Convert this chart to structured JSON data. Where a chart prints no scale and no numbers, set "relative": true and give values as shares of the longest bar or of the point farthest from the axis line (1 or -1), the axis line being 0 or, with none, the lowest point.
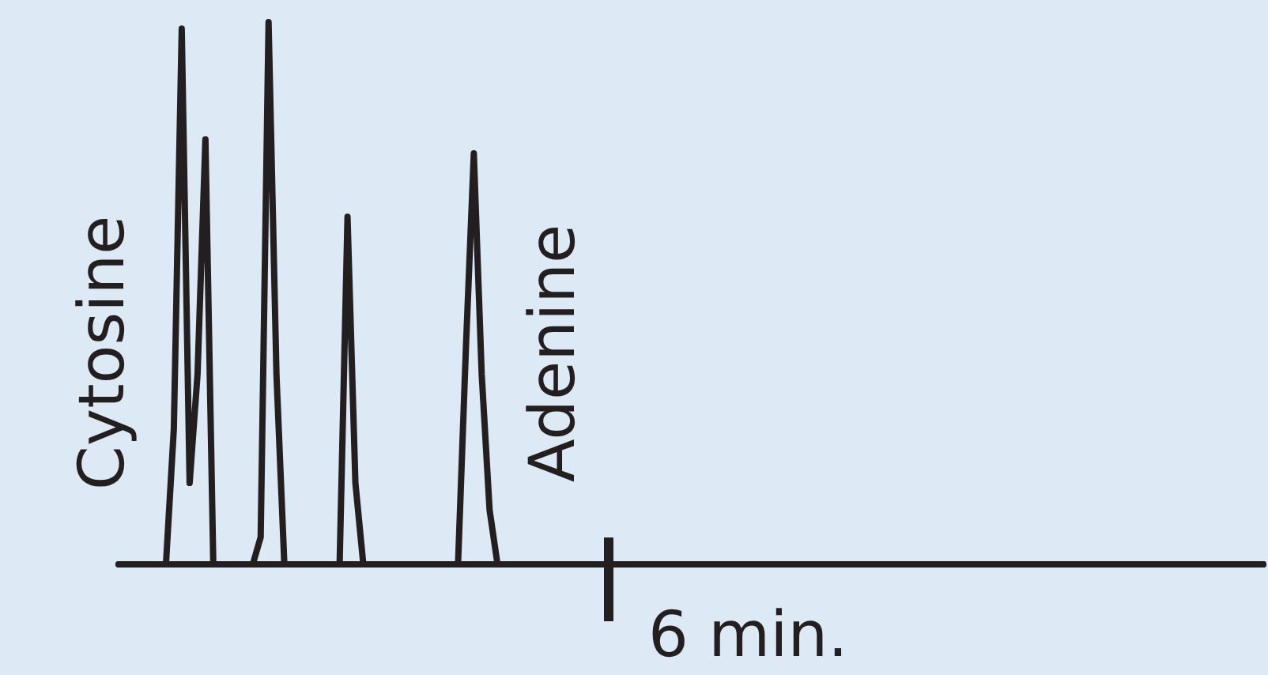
{
  "chart_data": {
    "type": "line",
    "relative": true,
    "color": "#231f20",
    "categories": [
      null,
      null,
      null,
      null,
      null,
      null,
      null,
      null,
      null,
      null,
      null,
      null,
      null,
      null,
      null,
      null,
      null,
      null,
      null,
      null,
      null,
      null,
      null,
      null,
      null,
      null,
      null,
      null,
      null,
      null,
      null,
      null,
      null,
      null,
      null,
      null,
      null,
      null,
      null,
      null,
      null,
      null,
      null,
      null,
      null,
      null,
      null,
      null,
      null,
      null,
      null,
      null,
      null,
      null,
      null,
      null,
      null,
      null,
      null,
      null,
      null,
      null,
      null,
      null,
      null,
      null,
      null,
      null,
      null,
      null,
      null,
      null,
      null,
      null,
      null,
      null,
      null,
      null,
      null,
      null,
      null,
      null,
      null,
      null,
      null,
      null,
      null,
      null,
      null,
      null,
      null,
      null,
      null,
      null,
      null,
      null,
      null,
      null,
      null,
      null,
      null,
      null,
      null,
      null,
      null,
      null,
      null,
      null,
      null,
      null,
      null,
      null,
      null,
      null,
      null,
      null,
      null,
      null,
      null,
      null,
      null,
      null,
      null,
      null,
      null,
      null,
      null,
      null,
      null,
      null,
      null,
      null,
      null,
      null,
      null,
      null,
      null,
      null,
      null,
      null,
      null,
      null,
      null,
      null,
      null,
      null
    ],
    "values": [
      0,
      0,
      0,
      0,
      0,
      0,
      0,
      0.25,
      0.988,
      0.15,
      0.35,
      0.784,
      0,
      0,
      0,
      0,
      0,
      0,
      0.05,
      1.0,
      0.35,
      0,
      0,
      0,
      0,
      0,
      0,
      0,
      0,
      0.641,
      0.15,
      0,
      0,
      0,
      0,
      0,
      0,
      0,
      0,
      0,
      0,
      0,
      0,
      0,
      0.4,
      0.758,
      0.35,
      0.1,
      0,
      0,
      0,
      0,
      0,
      0,
      0,
      0,
      0,
      0,
      0,
      0,
      0,
      0,
      0,
      0,
      0,
      0,
      0,
      0,
      0,
      0,
      0,
      0,
      0,
      0,
      0,
      0,
      0,
      0,
      0,
      0,
      0,
      0,
      0,
      0,
      0,
      0,
      0,
      0,
      0,
      0,
      0,
      0,
      0,
      0,
      0,
      0,
      0,
      0,
      0,
      0,
      0,
      0,
      0,
      0,
      0,
      0,
      0,
      0,
      0,
      0,
      0,
      0,
      0,
      0,
      0,
      0,
      0,
      0,
      0,
      0,
      0,
      0,
      0,
      0,
      0,
      0,
      0,
      0,
      0,
      0,
      0,
      0,
      0,
      0,
      0,
      0,
      0,
      0,
      0,
      0,
      0,
      0,
      0,
      0,
      0,
      0
    ],
    "annotations": [
      "Cytosine",
      "Adenine",
      "6 min."
    ],
    "marker": "none"
  }
}
